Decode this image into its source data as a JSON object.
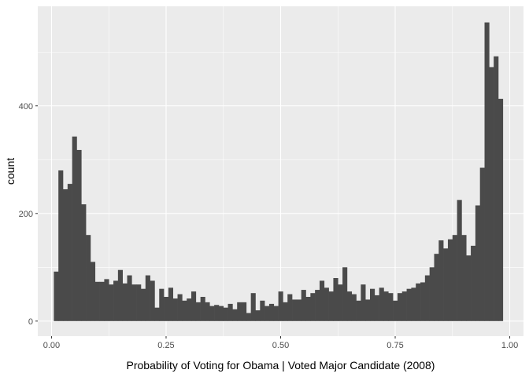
{
  "chart_data": {
    "type": "bar",
    "title": "",
    "xlabel": "Probability of Voting for Obama | Voted Major Candidate (2008)",
    "ylabel": "count",
    "xlim": [
      -0.03,
      1.03
    ],
    "ylim": [
      -28,
      585
    ],
    "x_ticks": [
      0.0,
      0.25,
      0.5,
      0.75,
      1.0
    ],
    "x_tick_labels": [
      "0.00",
      "0.25",
      "0.50",
      "0.75",
      "1.00"
    ],
    "y_ticks": [
      0,
      200,
      400
    ],
    "y_tick_labels": [
      "0",
      "200",
      "400"
    ],
    "grid": true,
    "legend": "none",
    "bin_start": 0.005,
    "bin_width": 0.01,
    "values": [
      92,
      280,
      245,
      255,
      343,
      318,
      217,
      160,
      110,
      73,
      73,
      78,
      68,
      75,
      95,
      70,
      85,
      68,
      68,
      60,
      85,
      75,
      25,
      60,
      45,
      62,
      42,
      50,
      38,
      42,
      55,
      35,
      45,
      35,
      28,
      30,
      28,
      25,
      32,
      22,
      35,
      35,
      15,
      52,
      20,
      38,
      28,
      32,
      28,
      55,
      35,
      50,
      40,
      40,
      58,
      45,
      52,
      58,
      75,
      62,
      55,
      80,
      68,
      100,
      55,
      50,
      38,
      68,
      40,
      60,
      48,
      62,
      55,
      52,
      38,
      52,
      55,
      60,
      62,
      70,
      72,
      85,
      100,
      125,
      150,
      135,
      152,
      160,
      225,
      160,
      122,
      140,
      215,
      285,
      555,
      472,
      492,
      413
    ],
    "colors": {
      "panel_background": "#ebebeb",
      "grid_major": "#ffffff",
      "bar_fill": "#4a4a4a"
    }
  }
}
